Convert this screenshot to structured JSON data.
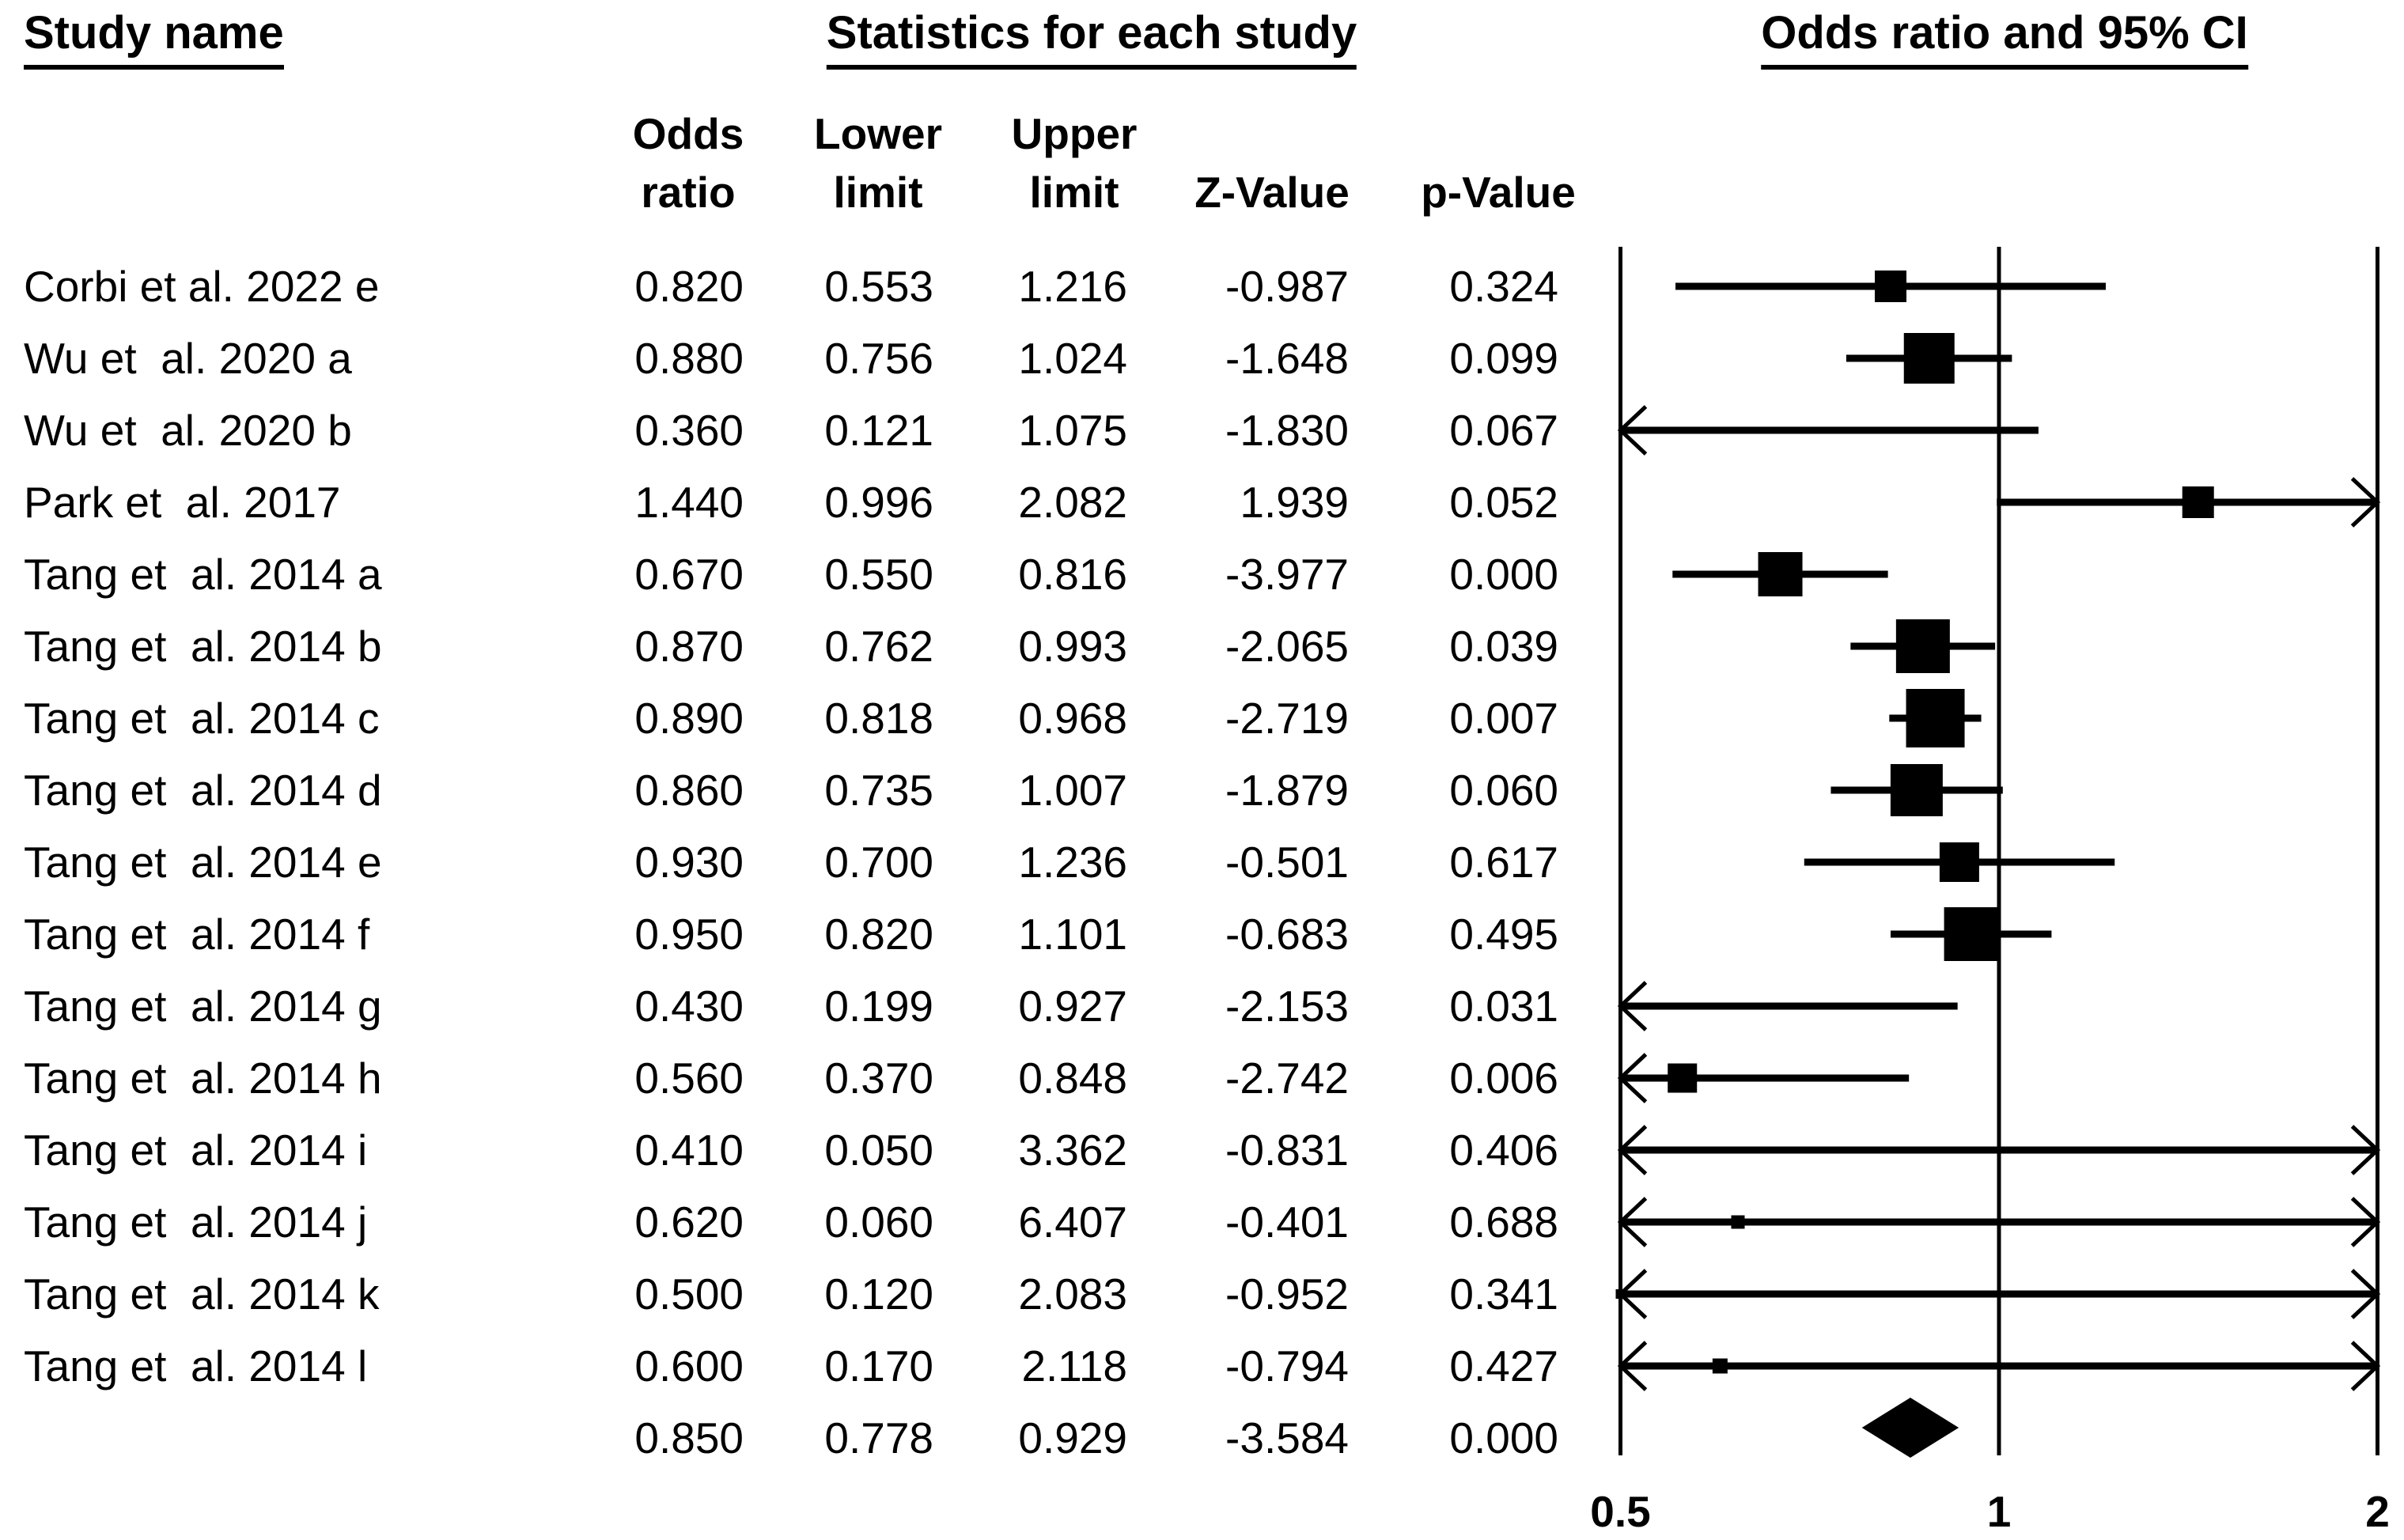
{
  "page": {
    "background": "#ffffff",
    "text_color": "#000000"
  },
  "headers": {
    "study_name": "Study name",
    "statistics": "Statistics for each study",
    "or_ci": "Odds ratio and 95% CI",
    "col_odds": [
      "Odds",
      "ratio"
    ],
    "col_lower": [
      "Lower",
      "limit"
    ],
    "col_upper": [
      "Upper",
      "limit"
    ],
    "col_z": "Z-Value",
    "col_p": "p-Value"
  },
  "chart_data": {
    "type": "forest",
    "x_scale": "log2",
    "xlim": [
      0.5,
      2
    ],
    "x_ticks": [
      0.5,
      1,
      2
    ],
    "x_tick_labels": [
      "0.5",
      "1",
      "2"
    ],
    "grid": false,
    "marker_color": "#000000",
    "studies": [
      {
        "name": "Corbi et al. 2022 e",
        "or": 0.82,
        "lower": 0.553,
        "upper": 1.216,
        "z": -0.987,
        "p": 0.324,
        "marker_px": 40
      },
      {
        "name": "Wu et  al. 2020 a",
        "or": 0.88,
        "lower": 0.756,
        "upper": 1.024,
        "z": -1.648,
        "p": 0.099,
        "marker_px": 64
      },
      {
        "name": "Wu et  al. 2020 b",
        "or": 0.36,
        "lower": 0.121,
        "upper": 1.075,
        "z": -1.83,
        "p": 0.067,
        "marker_px": 0
      },
      {
        "name": "Park et  al. 2017",
        "or": 1.44,
        "lower": 0.996,
        "upper": 2.082,
        "z": 1.939,
        "p": 0.052,
        "marker_px": 40
      },
      {
        "name": "Tang et  al. 2014 a",
        "or": 0.67,
        "lower": 0.55,
        "upper": 0.816,
        "z": -3.977,
        "p": 0.0,
        "marker_px": 56
      },
      {
        "name": "Tang et  al. 2014 b",
        "or": 0.87,
        "lower": 0.762,
        "upper": 0.993,
        "z": -2.065,
        "p": 0.039,
        "marker_px": 68
      },
      {
        "name": "Tang et  al. 2014 c",
        "or": 0.89,
        "lower": 0.818,
        "upper": 0.968,
        "z": -2.719,
        "p": 0.007,
        "marker_px": 74
      },
      {
        "name": "Tang et  al. 2014 d",
        "or": 0.86,
        "lower": 0.735,
        "upper": 1.007,
        "z": -1.879,
        "p": 0.06,
        "marker_px": 66
      },
      {
        "name": "Tang et  al. 2014 e",
        "or": 0.93,
        "lower": 0.7,
        "upper": 1.236,
        "z": -0.501,
        "p": 0.617,
        "marker_px": 50
      },
      {
        "name": "Tang et  al. 2014 f",
        "or": 0.95,
        "lower": 0.82,
        "upper": 1.101,
        "z": -0.683,
        "p": 0.495,
        "marker_px": 68
      },
      {
        "name": "Tang et  al. 2014 g",
        "or": 0.43,
        "lower": 0.199,
        "upper": 0.927,
        "z": -2.153,
        "p": 0.031,
        "marker_px": 0
      },
      {
        "name": "Tang et  al. 2014 h",
        "or": 0.56,
        "lower": 0.37,
        "upper": 0.848,
        "z": -2.742,
        "p": 0.006,
        "marker_px": 37
      },
      {
        "name": "Tang et  al. 2014 i",
        "or": 0.41,
        "lower": 0.05,
        "upper": 3.362,
        "z": -0.831,
        "p": 0.406,
        "marker_px": 0
      },
      {
        "name": "Tang et  al. 2014 j",
        "or": 0.62,
        "lower": 0.06,
        "upper": 6.407,
        "z": -0.401,
        "p": 0.688,
        "marker_px": 17
      },
      {
        "name": "Tang et  al. 2014 k",
        "or": 0.5,
        "lower": 0.12,
        "upper": 2.083,
        "z": -0.952,
        "p": 0.341,
        "marker_px": 12
      },
      {
        "name": "Tang et  al. 2014 l",
        "or": 0.6,
        "lower": 0.17,
        "upper": 2.118,
        "z": -0.794,
        "p": 0.427,
        "marker_px": 19
      }
    ],
    "summary": {
      "name": "",
      "or": 0.85,
      "lower": 0.778,
      "upper": 0.929,
      "z": -3.584,
      "p": 0.0,
      "marker": "diamond"
    }
  }
}
